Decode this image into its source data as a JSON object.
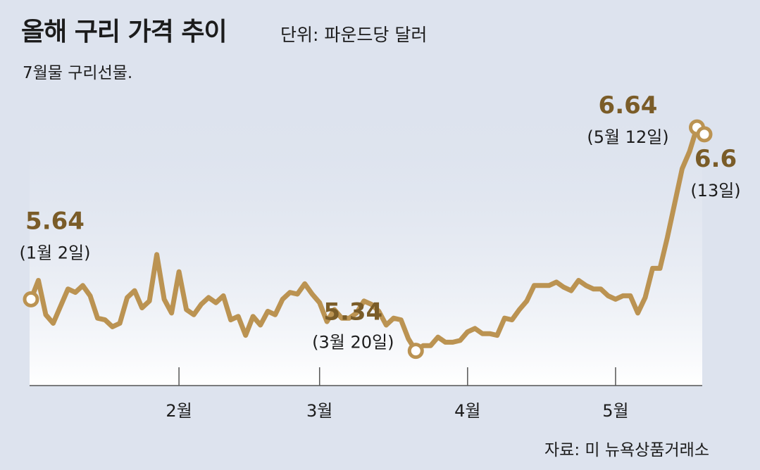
{
  "title": "올해 구리 가격 추이",
  "unit": "단위: 파운드당 달러",
  "subtitle": "7월물 구리선물.",
  "source": "자료: 미 뉴욕상품거래소",
  "chart_data": {
    "type": "line",
    "title": "올해 구리 가격 추이",
    "ylabel": "단위: 파운드당 달러",
    "xlabel": "",
    "x_ticks": [
      "2월",
      "3월",
      "4월",
      "5월"
    ],
    "ylim": [
      5.15,
      6.8
    ],
    "series": [
      {
        "name": "7월물 구리선물",
        "values": [
          5.64,
          5.75,
          5.55,
          5.5,
          5.6,
          5.7,
          5.68,
          5.72,
          5.66,
          5.53,
          5.52,
          5.48,
          5.5,
          5.65,
          5.69,
          5.59,
          5.63,
          5.9,
          5.64,
          5.56,
          5.8,
          5.58,
          5.55,
          5.61,
          5.65,
          5.62,
          5.66,
          5.52,
          5.54,
          5.43,
          5.54,
          5.49,
          5.57,
          5.55,
          5.64,
          5.68,
          5.67,
          5.73,
          5.67,
          5.62,
          5.51,
          5.58,
          5.53,
          5.53,
          5.56,
          5.63,
          5.61,
          5.57,
          5.49,
          5.53,
          5.52,
          5.41,
          5.34,
          5.37,
          5.37,
          5.42,
          5.39,
          5.39,
          5.4,
          5.45,
          5.47,
          5.44,
          5.44,
          5.43,
          5.53,
          5.52,
          5.58,
          5.63,
          5.72,
          5.72,
          5.72,
          5.74,
          5.71,
          5.69,
          5.75,
          5.72,
          5.7,
          5.7,
          5.66,
          5.64,
          5.66,
          5.66,
          5.56,
          5.65,
          5.82,
          5.82,
          6.0,
          6.2,
          6.4,
          6.5,
          6.64,
          6.6
        ]
      }
    ],
    "annotations": [
      {
        "label": "5.64",
        "date": "(1월 2일)"
      },
      {
        "label": "5.34",
        "date": "(3월 20일)"
      },
      {
        "label": "6.64",
        "date": "(5월 12일)"
      },
      {
        "label": "6.6",
        "date": "(13일)"
      }
    ],
    "colors": {
      "line": "#bb9352",
      "value_text": "#7a5c28",
      "background": "#dde3ee"
    }
  }
}
